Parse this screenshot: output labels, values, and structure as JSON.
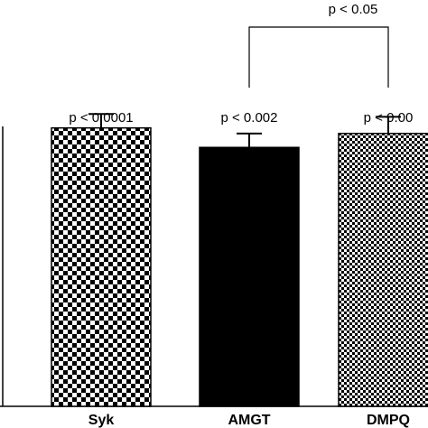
{
  "chart_data": {
    "type": "bar",
    "title": "",
    "xlabel": "",
    "ylabel": "",
    "ylim": [
      0,
      120
    ],
    "grid": false,
    "categories": [
      "Syk",
      "AMGT",
      "DMPQ"
    ],
    "values": [
      100,
      93,
      98
    ],
    "errors": [
      5,
      5,
      6
    ],
    "bar_patterns": [
      "checker-coarse",
      "solid",
      "checker-fine"
    ],
    "significance": [
      "p < 0.0001",
      "p < 0.002",
      "p < 0.00"
    ],
    "bracket": {
      "from": "AMGT",
      "to": "DMPQ",
      "label": "p < 0.05"
    }
  }
}
